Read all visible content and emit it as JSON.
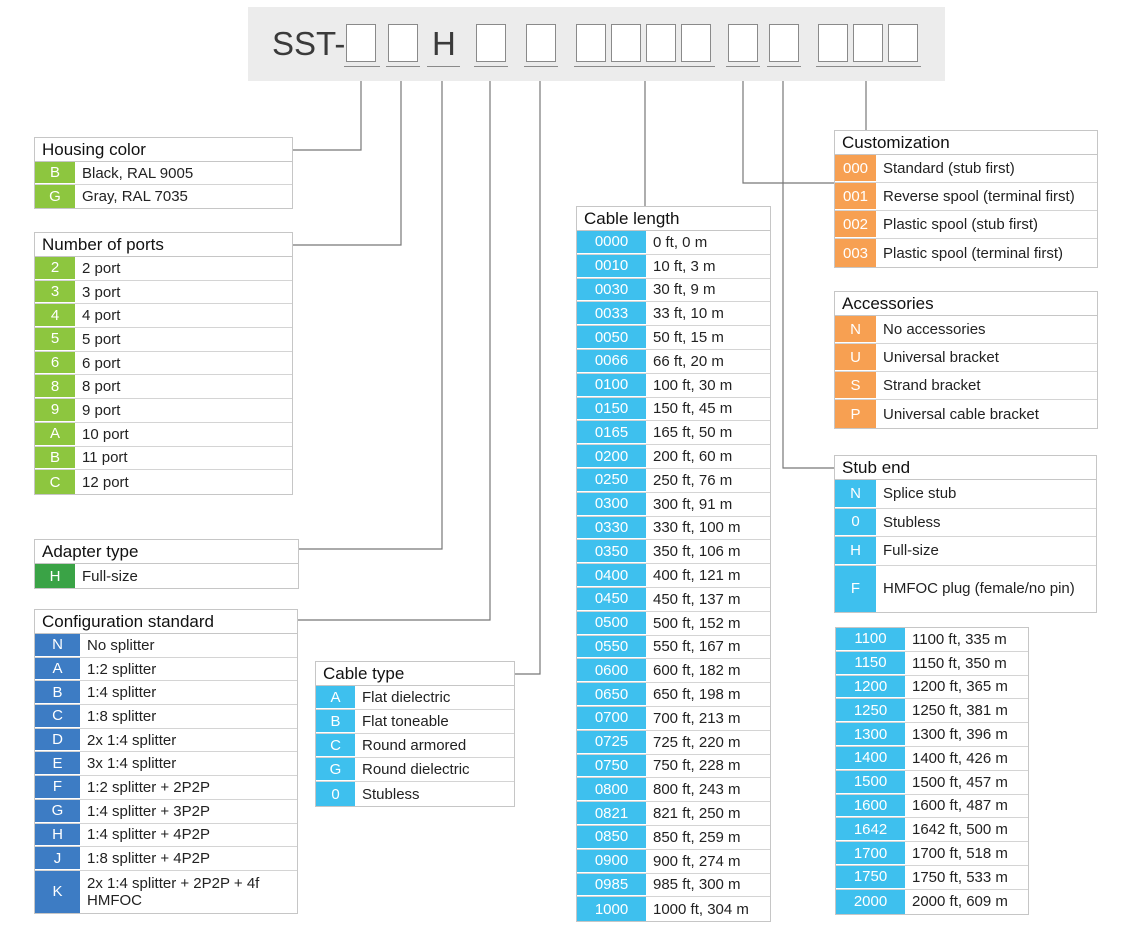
{
  "part_number": {
    "prefix": "SST-",
    "fixed_letter": "H"
  },
  "tables": {
    "housing_color": {
      "title": "Housing color",
      "rows": [
        {
          "code": "B",
          "desc": "Black, RAL 9005"
        },
        {
          "code": "G",
          "desc": "Gray, RAL 7035"
        }
      ]
    },
    "number_of_ports": {
      "title": "Number of ports",
      "rows": [
        {
          "code": "2",
          "desc": "2 port"
        },
        {
          "code": "3",
          "desc": "3 port"
        },
        {
          "code": "4",
          "desc": "4 port"
        },
        {
          "code": "5",
          "desc": "5 port"
        },
        {
          "code": "6",
          "desc": "6 port"
        },
        {
          "code": "8",
          "desc": "8 port"
        },
        {
          "code": "9",
          "desc": "9 port"
        },
        {
          "code": "A",
          "desc": "10 port"
        },
        {
          "code": "B",
          "desc": "11 port"
        },
        {
          "code": "C",
          "desc": "12 port"
        }
      ]
    },
    "adapter_type": {
      "title": "Adapter type",
      "rows": [
        {
          "code": "H",
          "desc": "Full-size"
        }
      ]
    },
    "configuration_standard": {
      "title": "Configuration standard",
      "rows": [
        {
          "code": "N",
          "desc": "No splitter"
        },
        {
          "code": "A",
          "desc": "1:2 splitter"
        },
        {
          "code": "B",
          "desc": "1:4 splitter"
        },
        {
          "code": "C",
          "desc": "1:8 splitter"
        },
        {
          "code": "D",
          "desc": "2x 1:4 splitter"
        },
        {
          "code": "E",
          "desc": "3x 1:4 splitter"
        },
        {
          "code": "F",
          "desc": "1:2 splitter + 2P2P"
        },
        {
          "code": "G",
          "desc": "1:4 splitter + 3P2P"
        },
        {
          "code": "H",
          "desc": "1:4 splitter + 4P2P"
        },
        {
          "code": "J",
          "desc": "1:8 splitter + 4P2P"
        },
        {
          "code": "K",
          "desc": "2x 1:4 splitter + 2P2P + 4f HMFOC"
        }
      ]
    },
    "cable_type": {
      "title": "Cable type",
      "rows": [
        {
          "code": "A",
          "desc": "Flat dielectric"
        },
        {
          "code": "B",
          "desc": "Flat toneable"
        },
        {
          "code": "C",
          "desc": "Round armored"
        },
        {
          "code": "G",
          "desc": "Round dielectric"
        },
        {
          "code": "0",
          "desc": "Stubless"
        }
      ]
    },
    "cable_length": {
      "title": "Cable length",
      "rows": [
        {
          "code": "0000",
          "desc": "0 ft, 0 m"
        },
        {
          "code": "0010",
          "desc": "10 ft, 3 m"
        },
        {
          "code": "0030",
          "desc": "30 ft, 9 m"
        },
        {
          "code": "0033",
          "desc": "33 ft, 10 m"
        },
        {
          "code": "0050",
          "desc": "50 ft, 15 m"
        },
        {
          "code": "0066",
          "desc": "66 ft, 20 m"
        },
        {
          "code": "0100",
          "desc": "100 ft, 30 m"
        },
        {
          "code": "0150",
          "desc": "150 ft, 45 m"
        },
        {
          "code": "0165",
          "desc": "165 ft, 50 m"
        },
        {
          "code": "0200",
          "desc": "200 ft, 60 m"
        },
        {
          "code": "0250",
          "desc": "250 ft, 76 m"
        },
        {
          "code": "0300",
          "desc": "300 ft, 91 m"
        },
        {
          "code": "0330",
          "desc": "330 ft, 100 m"
        },
        {
          "code": "0350",
          "desc": "350 ft, 106 m"
        },
        {
          "code": "0400",
          "desc": "400 ft, 121 m"
        },
        {
          "code": "0450",
          "desc": "450 ft, 137 m"
        },
        {
          "code": "0500",
          "desc": "500 ft, 152 m"
        },
        {
          "code": "0550",
          "desc": "550 ft, 167 m"
        },
        {
          "code": "0600",
          "desc": "600 ft, 182 m"
        },
        {
          "code": "0650",
          "desc": "650 ft, 198 m"
        },
        {
          "code": "0700",
          "desc": "700 ft, 213 m"
        },
        {
          "code": "0725",
          "desc": "725 ft, 220 m"
        },
        {
          "code": "0750",
          "desc": "750 ft, 228 m"
        },
        {
          "code": "0800",
          "desc": "800 ft, 243 m"
        },
        {
          "code": "0821",
          "desc": "821 ft, 250 m"
        },
        {
          "code": "0850",
          "desc": "850 ft, 259 m"
        },
        {
          "code": "0900",
          "desc": "900 ft, 274 m"
        },
        {
          "code": "0985",
          "desc": "985 ft, 300 m"
        },
        {
          "code": "1000",
          "desc": "1000 ft, 304 m"
        }
      ]
    },
    "cable_length_extended": {
      "rows": [
        {
          "code": "1100",
          "desc": "1100 ft, 335 m"
        },
        {
          "code": "1150",
          "desc": "1150 ft, 350 m"
        },
        {
          "code": "1200",
          "desc": "1200 ft, 365 m"
        },
        {
          "code": "1250",
          "desc": "1250 ft, 381 m"
        },
        {
          "code": "1300",
          "desc": "1300 ft, 396 m"
        },
        {
          "code": "1400",
          "desc": "1400 ft, 426 m"
        },
        {
          "code": "1500",
          "desc": "1500 ft, 457 m"
        },
        {
          "code": "1600",
          "desc": "1600 ft, 487 m"
        },
        {
          "code": "1642",
          "desc": "1642 ft, 500 m"
        },
        {
          "code": "1700",
          "desc": "1700 ft, 518 m"
        },
        {
          "code": "1750",
          "desc": "1750 ft, 533 m"
        },
        {
          "code": "2000",
          "desc": "2000 ft, 609 m"
        }
      ]
    },
    "customization": {
      "title": "Customization",
      "rows": [
        {
          "code": "000",
          "desc": "Standard (stub first)"
        },
        {
          "code": "001",
          "desc": "Reverse spool (terminal first)"
        },
        {
          "code": "002",
          "desc": "Plastic spool (stub first)"
        },
        {
          "code": "003",
          "desc": "Plastic spool (terminal first)"
        }
      ]
    },
    "accessories": {
      "title": "Accessories",
      "rows": [
        {
          "code": "N",
          "desc": "No accessories"
        },
        {
          "code": "U",
          "desc": "Universal bracket"
        },
        {
          "code": "S",
          "desc": "Strand bracket"
        },
        {
          "code": "P",
          "desc": "Universal cable bracket"
        }
      ]
    },
    "stub_end": {
      "title": "Stub end",
      "rows": [
        {
          "code": "N",
          "desc": "Splice stub"
        },
        {
          "code": "0",
          "desc": "Stubless"
        },
        {
          "code": "H",
          "desc": "Full-size"
        },
        {
          "code": "F",
          "desc": "HMFOC plug (female/no pin)"
        }
      ]
    }
  },
  "colors": {
    "housing_ports": "#8dc63f",
    "adapter": "#3aa346",
    "configuration": "#3d7cc4",
    "cable": "#3ec0ee",
    "customization_accessories": "#f7a052"
  }
}
